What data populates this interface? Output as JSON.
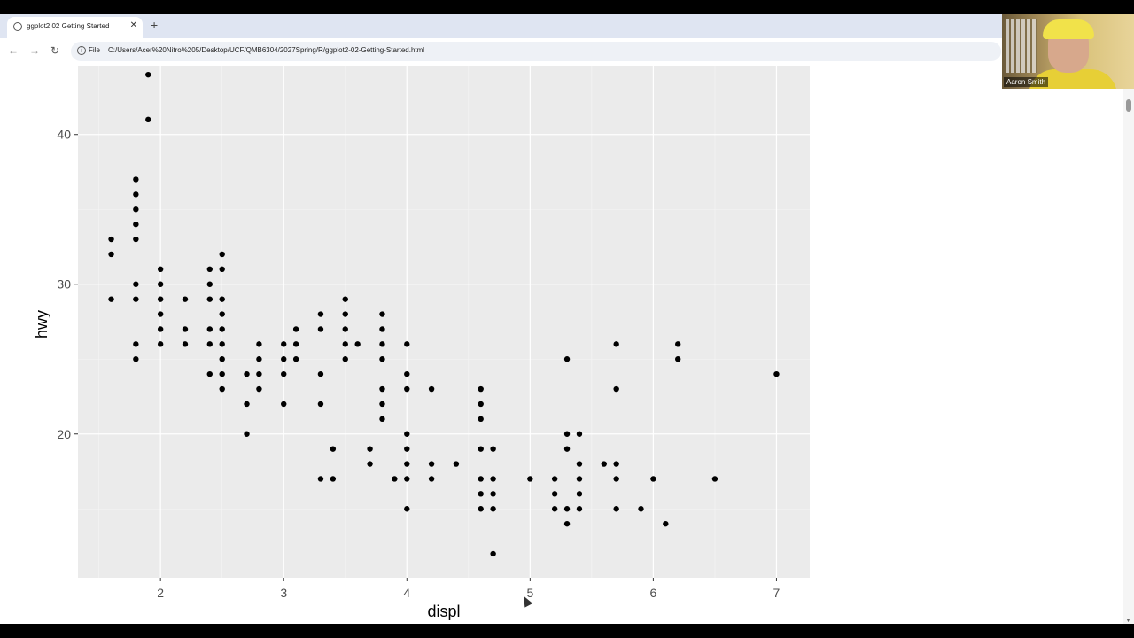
{
  "browser": {
    "tab_title": "ggplot2 02 Getting Started",
    "tab_close": "✕",
    "new_tab": "+",
    "file_label": "File",
    "url": "C:/Users/Acer%20Nitro%205/Desktop/UCF/QMB6304/2027Spring/R/ggplot2-02-Getting-Started.html",
    "icons": {
      "back": "arrow-left-icon",
      "forward": "arrow-right-icon",
      "reload": "reload-icon",
      "info": "info-icon",
      "zoom": "zoom-icon"
    }
  },
  "webcam": {
    "name": "Aaron Smith"
  },
  "chart_data": {
    "type": "scatter",
    "xlabel": "displ",
    "ylabel": "hwy",
    "xlim": [
      1.33,
      7.27
    ],
    "ylim": [
      10.4,
      44.6
    ],
    "xticks": [
      2,
      3,
      4,
      5,
      6,
      7
    ],
    "yticks": [
      20,
      30,
      40
    ],
    "grid": true,
    "background": "#ebebeb",
    "point_color": "#000000",
    "points": [
      [
        1.6,
        33
      ],
      [
        1.6,
        32
      ],
      [
        1.6,
        29
      ],
      [
        1.8,
        37
      ],
      [
        1.8,
        36
      ],
      [
        1.8,
        35
      ],
      [
        1.8,
        34
      ],
      [
        1.8,
        33
      ],
      [
        1.8,
        30
      ],
      [
        1.8,
        29
      ],
      [
        1.8,
        26
      ],
      [
        1.8,
        25
      ],
      [
        1.9,
        44
      ],
      [
        1.9,
        41
      ],
      [
        2.0,
        31
      ],
      [
        2.0,
        30
      ],
      [
        2.0,
        29
      ],
      [
        2.0,
        28
      ],
      [
        2.0,
        27
      ],
      [
        2.0,
        26
      ],
      [
        2.2,
        29
      ],
      [
        2.2,
        27
      ],
      [
        2.2,
        26
      ],
      [
        2.4,
        31
      ],
      [
        2.4,
        30
      ],
      [
        2.4,
        29
      ],
      [
        2.4,
        27
      ],
      [
        2.4,
        26
      ],
      [
        2.4,
        24
      ],
      [
        2.5,
        32
      ],
      [
        2.5,
        31
      ],
      [
        2.5,
        29
      ],
      [
        2.5,
        28
      ],
      [
        2.5,
        27
      ],
      [
        2.5,
        26
      ],
      [
        2.5,
        25
      ],
      [
        2.5,
        24
      ],
      [
        2.5,
        23
      ],
      [
        2.7,
        24
      ],
      [
        2.7,
        22
      ],
      [
        2.7,
        20
      ],
      [
        2.8,
        26
      ],
      [
        2.8,
        25
      ],
      [
        2.8,
        24
      ],
      [
        2.8,
        23
      ],
      [
        3.0,
        26
      ],
      [
        3.0,
        25
      ],
      [
        3.0,
        24
      ],
      [
        3.0,
        22
      ],
      [
        3.1,
        27
      ],
      [
        3.1,
        26
      ],
      [
        3.1,
        25
      ],
      [
        3.3,
        28
      ],
      [
        3.3,
        27
      ],
      [
        3.3,
        24
      ],
      [
        3.3,
        22
      ],
      [
        3.3,
        17
      ],
      [
        3.4,
        19
      ],
      [
        3.4,
        17
      ],
      [
        3.5,
        29
      ],
      [
        3.5,
        28
      ],
      [
        3.5,
        27
      ],
      [
        3.5,
        26
      ],
      [
        3.5,
        25
      ],
      [
        3.6,
        26
      ],
      [
        3.7,
        19
      ],
      [
        3.7,
        18
      ],
      [
        3.8,
        28
      ],
      [
        3.8,
        27
      ],
      [
        3.8,
        26
      ],
      [
        3.8,
        25
      ],
      [
        3.8,
        23
      ],
      [
        3.8,
        22
      ],
      [
        3.8,
        21
      ],
      [
        3.9,
        17
      ],
      [
        4.0,
        26
      ],
      [
        4.0,
        24
      ],
      [
        4.0,
        23
      ],
      [
        4.0,
        20
      ],
      [
        4.0,
        19
      ],
      [
        4.0,
        18
      ],
      [
        4.0,
        17
      ],
      [
        4.0,
        15
      ],
      [
        4.2,
        23
      ],
      [
        4.2,
        18
      ],
      [
        4.2,
        17
      ],
      [
        4.4,
        18
      ],
      [
        4.6,
        23
      ],
      [
        4.6,
        22
      ],
      [
        4.6,
        21
      ],
      [
        4.6,
        19
      ],
      [
        4.6,
        17
      ],
      [
        4.6,
        16
      ],
      [
        4.6,
        15
      ],
      [
        4.7,
        19
      ],
      [
        4.7,
        17
      ],
      [
        4.7,
        16
      ],
      [
        4.7,
        15
      ],
      [
        4.7,
        12
      ],
      [
        5.0,
        17
      ],
      [
        5.2,
        17
      ],
      [
        5.2,
        16
      ],
      [
        5.2,
        15
      ],
      [
        5.3,
        25
      ],
      [
        5.3,
        20
      ],
      [
        5.3,
        19
      ],
      [
        5.3,
        15
      ],
      [
        5.3,
        14
      ],
      [
        5.4,
        20
      ],
      [
        5.4,
        18
      ],
      [
        5.4,
        17
      ],
      [
        5.4,
        16
      ],
      [
        5.4,
        15
      ],
      [
        5.6,
        18
      ],
      [
        5.7,
        26
      ],
      [
        5.7,
        23
      ],
      [
        5.7,
        18
      ],
      [
        5.7,
        17
      ],
      [
        5.7,
        15
      ],
      [
        5.9,
        15
      ],
      [
        6.0,
        17
      ],
      [
        6.1,
        14
      ],
      [
        6.2,
        26
      ],
      [
        6.2,
        25
      ],
      [
        6.5,
        17
      ],
      [
        7.0,
        24
      ]
    ]
  }
}
